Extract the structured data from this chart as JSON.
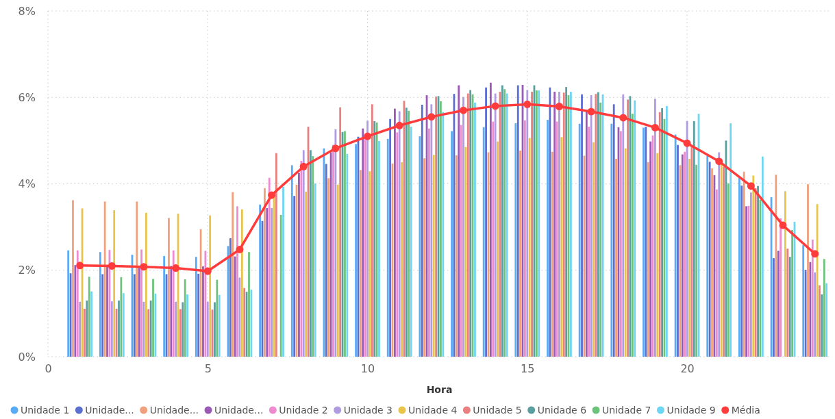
{
  "chart_data": {
    "type": "bar",
    "xlabel": "Hora",
    "x": [
      1,
      2,
      3,
      4,
      5,
      6,
      7,
      8,
      9,
      10,
      11,
      12,
      13,
      14,
      15,
      16,
      17,
      18,
      19,
      20,
      21,
      22,
      23,
      24
    ],
    "xlim": [
      0,
      24.5
    ],
    "xticks": [
      0,
      5,
      10,
      15,
      20
    ],
    "ylim": [
      0,
      8
    ],
    "yticks": [
      {
        "value": 0,
        "label": "0%"
      },
      {
        "value": 2,
        "label": "2%"
      },
      {
        "value": 4,
        "label": "4%"
      },
      {
        "value": 6,
        "label": "6%"
      },
      {
        "value": 8,
        "label": "8%"
      }
    ],
    "grid": true,
    "legend": "bottom",
    "series": [
      {
        "name": "Unidade 1",
        "color": "#5aabf5",
        "values": [
          2.46,
          2.42,
          2.36,
          2.33,
          2.31,
          2.56,
          3.52,
          4.43,
          4.82,
          4.92,
          5.04,
          5.1,
          5.22,
          5.31,
          5.4,
          5.48,
          5.39,
          5.39,
          5.3,
          5.14,
          4.65,
          4.14,
          3.69,
          2.58
        ]
      },
      {
        "name": "Unidade...",
        "color": "#5b6fcf",
        "values": [
          1.93,
          1.91,
          1.91,
          1.91,
          1.92,
          2.74,
          3.14,
          3.72,
          4.46,
          5.09,
          5.5,
          5.83,
          6.08,
          6.23,
          6.28,
          6.23,
          6.07,
          5.84,
          5.32,
          4.9,
          4.51,
          3.96,
          2.28,
          2.01
        ]
      },
      {
        "name": "Unidade...",
        "color": "#f0a07c",
        "values": [
          3.62,
          3.59,
          3.59,
          3.21,
          2.95,
          3.81,
          3.9,
          3.98,
          4.13,
          4.32,
          4.47,
          4.59,
          4.66,
          4.73,
          4.77,
          4.74,
          4.65,
          4.58,
          4.5,
          4.43,
          4.36,
          4.28,
          4.21,
          3.99
        ]
      },
      {
        "name": "Unidade...",
        "color": "#9b59b6",
        "values": [
          2.12,
          2.1,
          2.08,
          2.1,
          2.09,
          2.32,
          3.44,
          4.25,
          4.73,
          5.28,
          5.74,
          6.05,
          6.28,
          6.34,
          6.29,
          6.13,
          5.67,
          5.31,
          4.98,
          4.68,
          4.2,
          3.48,
          2.45,
          2.19
        ]
      },
      {
        "name": "Unidade 2",
        "color": "#ee8ad0",
        "values": [
          2.46,
          2.47,
          2.48,
          2.46,
          2.45,
          3.48,
          4.14,
          4.53,
          4.9,
          5.09,
          5.19,
          5.28,
          5.36,
          5.44,
          5.47,
          5.44,
          5.32,
          5.22,
          5.12,
          4.74,
          3.87,
          3.49,
          3.2,
          2.71
        ]
      },
      {
        "name": "Unidade 3",
        "color": "#b19be0",
        "values": [
          1.27,
          1.28,
          1.27,
          1.27,
          1.27,
          1.83,
          3.44,
          4.78,
          5.26,
          5.46,
          5.68,
          5.84,
          6.01,
          6.09,
          6.17,
          6.13,
          6.05,
          6.07,
          5.97,
          5.45,
          4.73,
          3.8,
          null,
          1.95
        ]
      },
      {
        "name": "Unidade 4",
        "color": "#e8c54a",
        "values": [
          3.43,
          3.39,
          3.33,
          3.31,
          3.27,
          3.41,
          3.77,
          3.82,
          3.98,
          4.29,
          4.5,
          4.67,
          4.85,
          4.98,
          5.06,
          5.08,
          4.96,
          4.82,
          4.71,
          4.58,
          4.45,
          4.19,
          3.83,
          3.53
        ]
      },
      {
        "name": "Unidade 5",
        "color": "#e88080",
        "values": [
          1.11,
          1.11,
          1.1,
          1.1,
          1.09,
          1.59,
          4.71,
          5.32,
          5.77,
          5.84,
          5.92,
          6.02,
          6.09,
          6.13,
          6.13,
          6.11,
          6.08,
          5.95,
          5.66,
          4.9,
          4.4,
          3.9,
          2.5,
          1.65
        ]
      },
      {
        "name": "Unidade 6",
        "color": "#5a9ea0",
        "values": [
          1.3,
          1.3,
          1.3,
          1.26,
          1.26,
          1.5,
          null,
          4.78,
          5.2,
          5.45,
          5.76,
          6.03,
          6.17,
          6.28,
          6.28,
          6.24,
          6.12,
          6.03,
          5.75,
          5.45,
          5.0,
          3.95,
          2.31,
          1.44
        ]
      },
      {
        "name": "Unidade 7",
        "color": "#6cc47c",
        "values": [
          1.85,
          1.84,
          1.8,
          1.79,
          1.78,
          2.42,
          3.28,
          4.64,
          5.22,
          5.42,
          5.69,
          5.91,
          6.07,
          6.19,
          6.16,
          6.05,
          5.88,
          5.62,
          5.5,
          4.44,
          4.01,
          3.63,
          2.93,
          2.26
        ]
      },
      {
        "name": "Unidade 9",
        "color": "#6ed6f4",
        "values": [
          1.51,
          1.47,
          1.46,
          1.44,
          1.43,
          1.55,
          3.93,
          4.01,
          4.69,
          4.99,
          5.32,
          5.66,
          5.88,
          6.09,
          6.16,
          6.13,
          6.07,
          5.93,
          5.8,
          5.62,
          5.4,
          4.63,
          3.12,
          1.7
        ]
      },
      {
        "name": "Média",
        "type": "line",
        "color": "#ff3b3b",
        "marker": "circle",
        "values": [
          2.11,
          2.1,
          2.08,
          2.05,
          1.98,
          2.48,
          3.74,
          4.4,
          4.82,
          5.1,
          5.35,
          5.55,
          5.7,
          5.8,
          5.84,
          5.79,
          5.67,
          5.53,
          5.3,
          4.94,
          4.52,
          3.95,
          3.04,
          2.38
        ]
      }
    ]
  }
}
